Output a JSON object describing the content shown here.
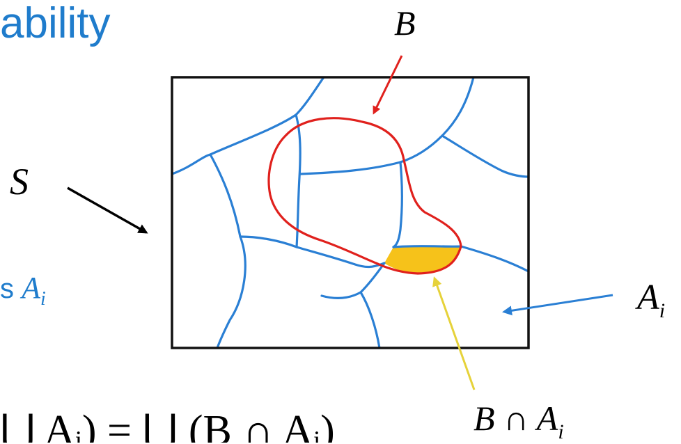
{
  "header": {
    "title_fragment": "ability"
  },
  "side_text": {
    "prefix": "s",
    "math_var": "A",
    "math_sub": "i"
  },
  "labels": {
    "B": "B",
    "S": "S",
    "A_i_var": "A",
    "A_i_sub": "i",
    "intersection_left": "B",
    "intersection_op": "∩",
    "intersection_var": "A",
    "intersection_sub": "i"
  },
  "formula": {
    "text": "⋃ Aᵢ) = ⋃ (B ∩ Aᵢ)"
  },
  "colors": {
    "title": "#1f7ccc",
    "partition_lines": "#2a7fd4",
    "region_B": "#e0211d",
    "intersection_fill": "#f6c21a",
    "arrow_B": "#e0211d",
    "arrow_S": "#000000",
    "arrow_Ai": "#2a7fd4",
    "arrow_intersection": "#e6d23a"
  }
}
